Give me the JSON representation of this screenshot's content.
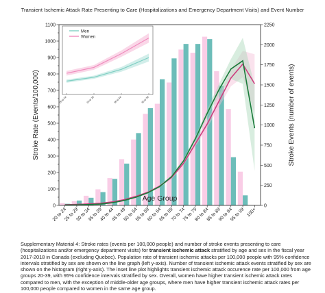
{
  "chart_title": "Transient Ischemic Attack Rate Presenting to Care (Hospitalizations and Emergency Department Visits) and Event Number",
  "caption": {
    "part1": "Supplementary Material 4: Stroke rates (events per 100,000 people) and number of stroke events presenting to care (hospitalizations and/or emergency department visits) for ",
    "bold": "transient ischemic attack",
    "part2": " stratified by age and sex in the fiscal year 2017-2018 in Canada (excluding Quebec). Population rate of transient ischemic attacks per 100,000 people with 95% confidence intervals stratified by sex are shown on the line graph (left y-axis). Number of transient ischemic attack events stratified by sex are shown on the histogram (right y-axis). The inset line plot highlights transient ischemic attack occurence rate per 100,000 from age groups 20-39, with 95% confidence intervals stratified by sex. Overall, women have higher transient ischemic attack rates compared to men, with the exception of middle-older age groups, where men have higher transient ischemic attack rates per 100,000 people compared to women in the same age group."
  },
  "chart_data": {
    "type": "bar+line",
    "xlabel": "Age Group",
    "ylabel_left": "Stroke Rate (Events/100,000)",
    "ylabel_right": "Stroke Events (number of events)",
    "categories": [
      "20 to 24",
      "25 to 29",
      "30 to 34",
      "35 to 39",
      "40 to 44",
      "45 to 49",
      "50 to 54",
      "55 to 59",
      "60 to 64",
      "65 to 69",
      "70 to 74",
      "75 to 79",
      "80 to 84",
      "85 to 89",
      "90 to 94",
      "95 to 99",
      "100+"
    ],
    "ylim_left": [
      0,
      1100
    ],
    "yticks_left": [
      0,
      50,
      100,
      150,
      200,
      250,
      300,
      350,
      400,
      450,
      500,
      550,
      600,
      650,
      700,
      750,
      800,
      850,
      900,
      950,
      1000,
      1050,
      1100
    ],
    "ylim_right": [
      0,
      2250
    ],
    "yticks_right": [
      0,
      250,
      500,
      750,
      1000,
      1250,
      1500,
      1750,
      2000,
      2250
    ],
    "bars": [
      {
        "name": "Women",
        "color": "#f9cde6",
        "values": [
          28,
          52,
          120,
          200,
          340,
          575,
          820,
          1140,
          1265,
          1530,
          1940,
          1900,
          2100,
          1670,
          1200,
          420,
          0
        ]
      },
      {
        "name": "Men",
        "color": "#6cbdb9",
        "values": [
          20,
          60,
          95,
          165,
          330,
          520,
          900,
          1210,
          1570,
          1830,
          2010,
          2010,
          2070,
          1490,
          600,
          125,
          0
        ]
      }
    ],
    "lines": [
      {
        "name": "Women",
        "color": "#cc3d7e",
        "band_color": "#f5bfd8",
        "values": [
          4,
          6,
          9,
          13,
          21,
          35,
          55,
          80,
          118,
          170,
          255,
          375,
          495,
          635,
          775,
          860,
          740
        ],
        "ci_low": [
          3,
          5,
          8,
          11,
          19,
          32,
          51,
          75,
          111,
          160,
          242,
          358,
          470,
          600,
          725,
          780,
          560
        ],
        "ci_high": [
          5,
          7,
          10,
          15,
          23,
          38,
          59,
          85,
          125,
          180,
          268,
          392,
          520,
          670,
          825,
          940,
          920
        ]
      },
      {
        "name": "Men",
        "color": "#1a7a3a",
        "band_color": "#a9d6b8",
        "values": [
          2,
          3,
          5,
          8,
          16,
          30,
          50,
          77,
          115,
          175,
          270,
          405,
          560,
          705,
          830,
          880,
          470
        ],
        "ci_low": [
          1,
          2,
          4,
          7,
          14,
          27,
          46,
          72,
          108,
          166,
          257,
          388,
          535,
          670,
          770,
          740,
          210
        ],
        "ci_high": [
          3,
          4,
          6,
          9,
          18,
          33,
          54,
          82,
          122,
          184,
          283,
          422,
          585,
          740,
          890,
          1020,
          730
        ]
      }
    ],
    "inset": {
      "type": "line",
      "legend": [
        "Men",
        "Women"
      ],
      "categories": [
        "20 to 24",
        "25 to 29",
        "30 to 34",
        "35 to 39"
      ],
      "series": [
        {
          "name": "Men",
          "color": "#7fcfc3",
          "values": [
            2.0,
            3.0,
            5.0,
            8.0
          ],
          "ci_low": [
            1.6,
            2.6,
            4.4,
            7.0
          ],
          "ci_high": [
            2.4,
            3.4,
            5.6,
            9.0
          ]
        },
        {
          "name": "Women",
          "color": "#f08bbd",
          "values": [
            4.0,
            5.5,
            9.0,
            13.0
          ],
          "ci_low": [
            3.4,
            4.9,
            8.2,
            11.8
          ],
          "ci_high": [
            4.6,
            6.1,
            9.8,
            14.2
          ]
        }
      ],
      "ylim": [
        0,
        15
      ]
    }
  }
}
